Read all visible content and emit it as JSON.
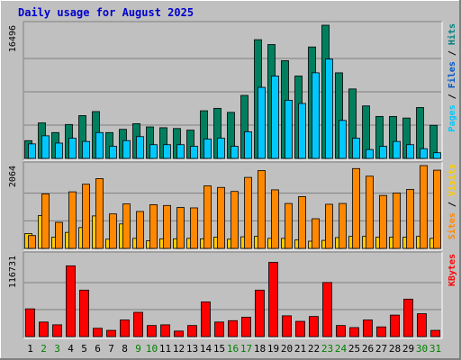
{
  "chart_data": {
    "type": "bar",
    "title": "Daily usage for August 2025",
    "colors": {
      "background": "#c0c0c0",
      "plot_bg": "#c0c0c0",
      "pages": "#00c8ff",
      "files": "#007f5f",
      "hits": "#008080",
      "sites": "#ffcc00",
      "visits": "#ff8800",
      "kbytes": "#ff0000",
      "title": "#0000cc",
      "weekend": "#008000",
      "weekday": "#000000"
    },
    "days": [
      "1",
      "2",
      "3",
      "4",
      "5",
      "6",
      "7",
      "8",
      "9",
      "10",
      "11",
      "12",
      "13",
      "14",
      "15",
      "16",
      "17",
      "18",
      "19",
      "20",
      "21",
      "22",
      "23",
      "24",
      "25",
      "26",
      "27",
      "28",
      "29",
      "30",
      "31"
    ],
    "weekend_days": [
      "2",
      "3",
      "9",
      "10",
      "16",
      "17",
      "23",
      "24",
      "30",
      "31"
    ],
    "panels": [
      {
        "name": "hits",
        "axis_max_label": "16496",
        "ymax": 16496,
        "labels": [
          {
            "text": "Pages",
            "color": "#00c8ff"
          },
          {
            "text": " / ",
            "color": "#000000"
          },
          {
            "text": "Files",
            "color": "#0055cc"
          },
          {
            "text": " / ",
            "color": "#000000"
          },
          {
            "text": "Hits",
            "color": "#008080"
          }
        ],
        "series": [
          {
            "name": "Hits",
            "color": "#007f5f",
            "values": [
              2200,
              4400,
              3200,
              4200,
              5300,
              5800,
              3200,
              3600,
              4300,
              3900,
              3800,
              3700,
              3500,
              5900,
              6200,
              5700,
              7800,
              14700,
              14100,
              12100,
              10200,
              13800,
              16496,
              10600,
              8600,
              6500,
              5200,
              5200,
              5000,
              6300,
              4100
            ]
          },
          {
            "name": "Pages",
            "color": "#00c8ff",
            "values": [
              1800,
              2800,
              1900,
              2500,
              2100,
              3200,
              1500,
              2200,
              2700,
              1700,
              1700,
              1700,
              1500,
              2400,
              2500,
              1500,
              3300,
              8800,
              10200,
              7200,
              6800,
              10600,
              12300,
              4700,
              2500,
              1100,
              1500,
              2100,
              1700,
              1200,
              700
            ]
          }
        ]
      },
      {
        "name": "visits",
        "axis_max_label": "2064",
        "ymax": 2064,
        "labels": [
          {
            "text": "Sites",
            "color": "#ff8800"
          },
          {
            "text": " / ",
            "color": "#000000"
          },
          {
            "text": "Visits",
            "color": "#ffcc00"
          }
        ],
        "series": [
          {
            "name": "Sites",
            "color": "#ffcc00",
            "values": [
              370,
              820,
              280,
              400,
              520,
              810,
              230,
              610,
              250,
              190,
              240,
              240,
              250,
              240,
              280,
              230,
              290,
              300,
              250,
              250,
              210,
              180,
              200,
              270,
              300,
              300,
              280,
              280,
              280,
              300,
              250
            ]
          },
          {
            "name": "Visits",
            "color": "#ff8800",
            "values": [
              320,
              1360,
              650,
              1410,
              1600,
              1740,
              860,
              1110,
              920,
              1090,
              1070,
              1020,
              1010,
              1560,
              1520,
              1420,
              1770,
              1940,
              1460,
              1120,
              1290,
              740,
              1100,
              1120,
              1990,
              1800,
              1320,
              1380,
              1470,
              2064,
              1950
            ]
          }
        ]
      },
      {
        "name": "kbytes",
        "axis_max_label": "116731",
        "ymax": 116731,
        "labels": [
          {
            "text": "KBytes",
            "color": "#ff0000"
          }
        ],
        "series": [
          {
            "name": "KBytes",
            "color": "#ff0000",
            "values": [
              40000,
              21000,
              17000,
              102000,
              67000,
              12000,
              9000,
              24000,
              35000,
              16000,
              17000,
              8000,
              16000,
              50000,
              21000,
              23000,
              28000,
              67000,
              107000,
              30000,
              22000,
              29000,
              78000,
              16000,
              13000,
              24000,
              14000,
              31000,
              54000,
              33000,
              9000
            ]
          }
        ]
      }
    ]
  }
}
